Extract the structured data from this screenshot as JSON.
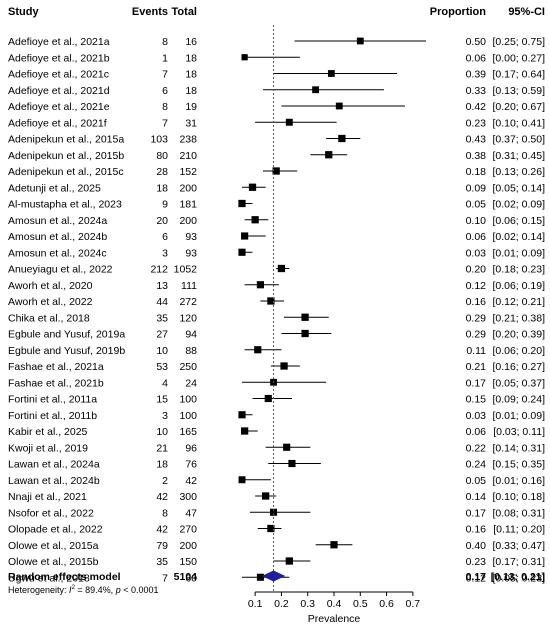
{
  "chart_data": {
    "type": "forest",
    "headers": {
      "study": "Study",
      "events": "Events",
      "total": "Total",
      "proportion": "Proportion",
      "ci": "95%-CI"
    },
    "xlabel": "Prevalence",
    "xticks": [
      0.1,
      0.2,
      0.3,
      0.4,
      0.5,
      0.6,
      0.7
    ],
    "xlim": [
      0.05,
      0.75
    ],
    "reference_line": 0.17,
    "studies": [
      {
        "study": "Adefioye et al., 2021a",
        "events": 8,
        "total": 16,
        "prop": 0.5,
        "lo": 0.25,
        "hi": 0.75,
        "ci": "[0.25; 0.75]",
        "weight": 2.9
      },
      {
        "study": "Adefioye et al., 2021b",
        "events": 1,
        "total": 18,
        "prop": 0.06,
        "lo": 0.0,
        "hi": 0.27,
        "ci": "[0.00; 0.27]",
        "weight": 2.4
      },
      {
        "study": "Adefioye et al., 2021c",
        "events": 7,
        "total": 18,
        "prop": 0.39,
        "lo": 0.17,
        "hi": 0.64,
        "ci": "[0.17; 0.64]",
        "weight": 2.9
      },
      {
        "study": "Adefioye et al., 2021d",
        "events": 6,
        "total": 18,
        "prop": 0.33,
        "lo": 0.13,
        "hi": 0.59,
        "ci": "[0.13; 0.59]",
        "weight": 2.9
      },
      {
        "study": "Adefioye et al., 2021e",
        "events": 8,
        "total": 19,
        "prop": 0.42,
        "lo": 0.2,
        "hi": 0.67,
        "ci": "[0.20; 0.67]",
        "weight": 2.9
      },
      {
        "study": "Adefioye et al., 2021f",
        "events": 7,
        "total": 31,
        "prop": 0.23,
        "lo": 0.1,
        "hi": 0.41,
        "ci": "[0.10; 0.41]",
        "weight": 3.0
      },
      {
        "study": "Adenipekun et al., 2015a",
        "events": 103,
        "total": 238,
        "prop": 0.43,
        "lo": 0.37,
        "hi": 0.5,
        "ci": "[0.37; 0.50]",
        "weight": 3.3
      },
      {
        "study": "Adenipekun et al., 2015b",
        "events": 80,
        "total": 210,
        "prop": 0.38,
        "lo": 0.31,
        "hi": 0.45,
        "ci": "[0.31; 0.45]",
        "weight": 3.3
      },
      {
        "study": "Adenipekun et al., 2015c",
        "events": 28,
        "total": 152,
        "prop": 0.18,
        "lo": 0.13,
        "hi": 0.26,
        "ci": "[0.13; 0.26]",
        "weight": 3.3
      },
      {
        "study": "Adetunji et al., 2025",
        "events": 18,
        "total": 200,
        "prop": 0.09,
        "lo": 0.05,
        "hi": 0.14,
        "ci": "[0.05; 0.14]",
        "weight": 3.3
      },
      {
        "study": "Al-mustapha et al., 2023",
        "events": 9,
        "total": 181,
        "prop": 0.05,
        "lo": 0.02,
        "hi": 0.09,
        "ci": "[0.02; 0.09]",
        "weight": 3.3
      },
      {
        "study": "Amosun et al., 2024a",
        "events": 20,
        "total": 200,
        "prop": 0.1,
        "lo": 0.06,
        "hi": 0.15,
        "ci": "[0.06; 0.15]",
        "weight": 3.3
      },
      {
        "study": "Amosun et al., 2024b",
        "events": 6,
        "total": 93,
        "prop": 0.06,
        "lo": 0.02,
        "hi": 0.14,
        "ci": "[0.02; 0.14]",
        "weight": 3.2
      },
      {
        "study": "Amosun et al., 2024c",
        "events": 3,
        "total": 93,
        "prop": 0.03,
        "lo": 0.01,
        "hi": 0.09,
        "ci": "[0.01; 0.09]",
        "weight": 3.2
      },
      {
        "study": "Anueyiagu et al., 2022",
        "events": 212,
        "total": 1052,
        "prop": 0.2,
        "lo": 0.18,
        "hi": 0.23,
        "ci": "[0.18; 0.23]",
        "weight": 3.3
      },
      {
        "study": "Aworh et al., 2020",
        "events": 13,
        "total": 111,
        "prop": 0.12,
        "lo": 0.06,
        "hi": 0.19,
        "ci": "[0.06; 0.19]",
        "weight": 3.2
      },
      {
        "study": "Aworh et al., 2022",
        "events": 44,
        "total": 272,
        "prop": 0.16,
        "lo": 0.12,
        "hi": 0.21,
        "ci": "[0.12; 0.21]",
        "weight": 3.3
      },
      {
        "study": "Chika et al., 2018",
        "events": 35,
        "total": 120,
        "prop": 0.29,
        "lo": 0.21,
        "hi": 0.38,
        "ci": "[0.21; 0.38]",
        "weight": 3.3
      },
      {
        "study": "Egbule and Yusuf, 2019a",
        "events": 27,
        "total": 94,
        "prop": 0.29,
        "lo": 0.2,
        "hi": 0.39,
        "ci": "[0.20; 0.39]",
        "weight": 3.3
      },
      {
        "study": "Egbule and Yusuf, 2019b",
        "events": 10,
        "total": 88,
        "prop": 0.11,
        "lo": 0.06,
        "hi": 0.2,
        "ci": "[0.06; 0.20]",
        "weight": 3.2
      },
      {
        "study": "Fashae et al., 2021a",
        "events": 53,
        "total": 250,
        "prop": 0.21,
        "lo": 0.16,
        "hi": 0.27,
        "ci": "[0.16; 0.27]",
        "weight": 3.3
      },
      {
        "study": "Fashae et al., 2021b",
        "events": 4,
        "total": 24,
        "prop": 0.17,
        "lo": 0.05,
        "hi": 0.37,
        "ci": "[0.05; 0.37]",
        "weight": 2.9
      },
      {
        "study": "Fortini et al., 2011a",
        "events": 15,
        "total": 100,
        "prop": 0.15,
        "lo": 0.09,
        "hi": 0.24,
        "ci": "[0.09; 0.24]",
        "weight": 3.2
      },
      {
        "study": "Fortini et al., 2011b",
        "events": 3,
        "total": 100,
        "prop": 0.03,
        "lo": 0.01,
        "hi": 0.09,
        "ci": "[0.01; 0.09]",
        "weight": 3.2
      },
      {
        "study": "Kabir et al., 2025",
        "events": 10,
        "total": 165,
        "prop": 0.06,
        "lo": 0.03,
        "hi": 0.11,
        "ci": "[0.03; 0.11]",
        "weight": 3.3
      },
      {
        "study": "Kwoji et al., 2019",
        "events": 21,
        "total": 96,
        "prop": 0.22,
        "lo": 0.14,
        "hi": 0.31,
        "ci": "[0.14; 0.31]",
        "weight": 3.2
      },
      {
        "study": "Lawan et al., 2024a",
        "events": 18,
        "total": 76,
        "prop": 0.24,
        "lo": 0.15,
        "hi": 0.35,
        "ci": "[0.15; 0.35]",
        "weight": 3.2
      },
      {
        "study": "Lawan et al., 2024b",
        "events": 2,
        "total": 42,
        "prop": 0.05,
        "lo": 0.01,
        "hi": 0.16,
        "ci": "[0.01; 0.16]",
        "weight": 3.0
      },
      {
        "study": "Nnaji et al., 2021",
        "events": 42,
        "total": 300,
        "prop": 0.14,
        "lo": 0.1,
        "hi": 0.18,
        "ci": "[0.10; 0.18]",
        "weight": 3.3
      },
      {
        "study": "Nsofor et al., 2022",
        "events": 8,
        "total": 47,
        "prop": 0.17,
        "lo": 0.08,
        "hi": 0.31,
        "ci": "[0.08; 0.31]",
        "weight": 3.1
      },
      {
        "study": "Olopade et al., 2022",
        "events": 42,
        "total": 270,
        "prop": 0.16,
        "lo": 0.11,
        "hi": 0.2,
        "ci": "[0.11; 0.20]",
        "weight": 3.3
      },
      {
        "study": "Olowe et al., 2015a",
        "events": 79,
        "total": 200,
        "prop": 0.4,
        "lo": 0.33,
        "hi": 0.47,
        "ci": "[0.33; 0.47]",
        "weight": 3.3
      },
      {
        "study": "Olowe et al., 2015b",
        "events": 35,
        "total": 150,
        "prop": 0.23,
        "lo": 0.17,
        "hi": 0.31,
        "ci": "[0.17; 0.31]",
        "weight": 3.3
      },
      {
        "study": "Ugwu et al., 2018",
        "events": 7,
        "total": 60,
        "prop": 0.12,
        "lo": 0.05,
        "hi": 0.23,
        "ci": "[0.05; 0.23]",
        "weight": 3.1
      }
    ],
    "pooled": {
      "label": "Random effects model",
      "total": 5104,
      "prop": 0.17,
      "lo": 0.13,
      "hi": 0.21,
      "prop_text": "0.17",
      "ci": "[0.13; 0.21]"
    },
    "heterogeneity": {
      "prefix": "Heterogeneity: ",
      "i2_symbol": "I",
      "i2_exp": "2",
      "i2_value": " = 89.4%, ",
      "p_symbol": "p",
      "p_value": " < 0.0001"
    },
    "colors": {
      "square": "#000000",
      "diamond": "#1f1f9e",
      "reference_line": "#555555"
    }
  }
}
